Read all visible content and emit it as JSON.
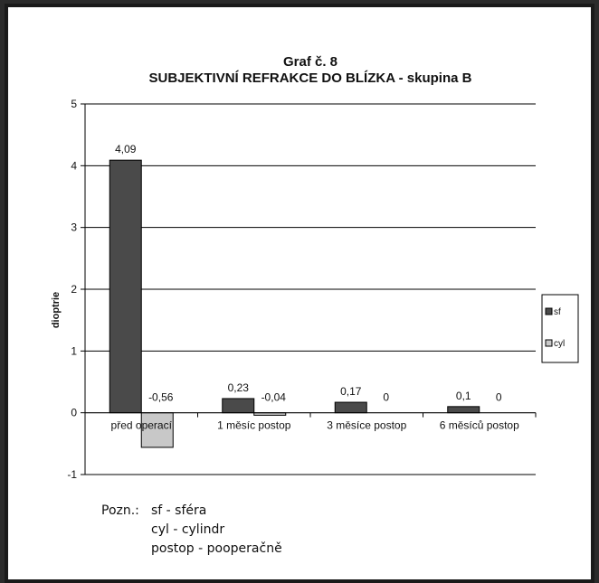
{
  "chart_data": {
    "type": "bar",
    "title": "Graf č. 8",
    "subtitle": "SUBJEKTIVNÍ REFRAKCE  DO BLÍZKA  - skupina B",
    "ylabel": "dioptrie",
    "xlabel": "",
    "ylim": [
      -1,
      5
    ],
    "yticks": [
      "-1",
      "0",
      "1",
      "2",
      "3",
      "4",
      "5"
    ],
    "categories": [
      "před operací",
      "1 měsíc postop",
      "3 měsíce postop",
      "6 měsíců postop"
    ],
    "series": [
      {
        "name": "sf",
        "values": [
          4.09,
          0.23,
          0.17,
          0.1
        ],
        "labels": [
          "4,09",
          "0,23",
          "0,17",
          "0,1"
        ],
        "color": "#4a4a4a"
      },
      {
        "name": "cyl",
        "values": [
          -0.56,
          -0.04,
          0,
          0
        ],
        "labels": [
          "-0,56",
          "-0,04",
          "0",
          "0"
        ],
        "color": "#c8c8c8"
      }
    ],
    "grid": true,
    "legend": "right"
  },
  "notes": {
    "prefix": "Pozn.:",
    "lines": [
      "sf - sféra",
      "cyl - cylindr",
      "postop - pooperačně"
    ]
  }
}
